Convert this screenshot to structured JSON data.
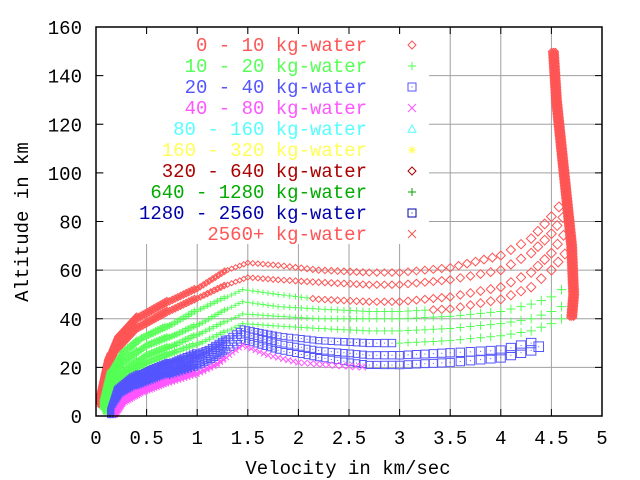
{
  "chart_data": {
    "type": "scatter",
    "title": "",
    "xlabel": "Velocity in km/sec",
    "ylabel": "Altitude in km",
    "xlim": [
      0,
      5
    ],
    "ylim": [
      0,
      160
    ],
    "xticks": [
      "0",
      "0.5",
      "1",
      "1.5",
      "2",
      "2.5",
      "3",
      "3.5",
      "4",
      "4.5",
      "5"
    ],
    "xtick_values": [
      0,
      0.5,
      1,
      1.5,
      2,
      2.5,
      3,
      3.5,
      4,
      4.5,
      5
    ],
    "yticks": [
      "0",
      "20",
      "40",
      "60",
      "80",
      "100",
      "120",
      "140",
      "160"
    ],
    "ytick_values": [
      0,
      20,
      40,
      60,
      80,
      100,
      120,
      140,
      160
    ],
    "grid": true,
    "legend_position": "top-center",
    "legend": [
      {
        "label": "0 - 10 kg-water",
        "color": "#ff5555",
        "marker": "diamond"
      },
      {
        "label": "10 - 20 kg-water",
        "color": "#55ff55",
        "marker": "plus"
      },
      {
        "label": "20 - 40 kg-water",
        "color": "#5555ff",
        "marker": "square"
      },
      {
        "label": "40 - 80 kg-water",
        "color": "#ff55ff",
        "marker": "cross"
      },
      {
        "label": "80 - 160 kg-water",
        "color": "#55ffff",
        "marker": "triangle"
      },
      {
        "label": "160 - 320 kg-water",
        "color": "#ffff55",
        "marker": "star"
      },
      {
        "label": "320 - 640 kg-water",
        "color": "#aa0000",
        "marker": "diamond"
      },
      {
        "label": "640 - 1280 kg-water",
        "color": "#00aa00",
        "marker": "plus"
      },
      {
        "label": "1280 - 2560 kg-water",
        "color": "#0000aa",
        "marker": "square"
      },
      {
        "label": "2560+ kg-water",
        "color": "#ff5555",
        "marker": "cross"
      }
    ],
    "series": [
      {
        "legend_index": 0,
        "points": [
          [
            0.02,
            5
          ],
          [
            0.1,
            20
          ],
          [
            0.2,
            30
          ],
          [
            0.4,
            39
          ],
          [
            0.7,
            46
          ],
          [
            1.0,
            52
          ],
          [
            1.3,
            60
          ],
          [
            1.5,
            63
          ],
          [
            1.8,
            62
          ],
          [
            2.2,
            60
          ],
          [
            2.7,
            59
          ],
          [
            3.0,
            59
          ],
          [
            3.5,
            61
          ],
          [
            4.0,
            66
          ],
          [
            4.3,
            73
          ],
          [
            4.5,
            82
          ],
          [
            4.65,
            90
          ]
        ]
      },
      {
        "legend_index": 0,
        "points": [
          [
            0.03,
            4
          ],
          [
            0.1,
            17
          ],
          [
            0.2,
            26
          ],
          [
            0.4,
            35
          ],
          [
            0.7,
            42
          ],
          [
            1.0,
            48
          ],
          [
            1.3,
            54
          ],
          [
            1.5,
            57
          ],
          [
            1.8,
            56
          ],
          [
            2.2,
            55
          ],
          [
            2.7,
            54
          ],
          [
            3.0,
            54
          ],
          [
            3.5,
            56
          ],
          [
            4.0,
            60
          ],
          [
            4.3,
            67
          ],
          [
            4.5,
            75
          ],
          [
            4.67,
            85
          ]
        ]
      },
      {
        "legend_index": 1,
        "switch_at": 2.1,
        "switch_index": 0,
        "points": [
          [
            0.05,
            3
          ],
          [
            0.12,
            15
          ],
          [
            0.25,
            24
          ],
          [
            0.45,
            31
          ],
          [
            0.75,
            37
          ],
          [
            1.0,
            43
          ],
          [
            1.3,
            49
          ],
          [
            1.45,
            52
          ],
          [
            1.8,
            50
          ],
          [
            2.2,
            48
          ],
          [
            2.7,
            47
          ],
          [
            3.0,
            47
          ],
          [
            3.5,
            49
          ],
          [
            4.0,
            53
          ],
          [
            4.3,
            59
          ],
          [
            4.5,
            67
          ],
          [
            4.68,
            78
          ]
        ]
      },
      {
        "legend_index": 1,
        "switch_at": 3.3,
        "switch_index": 0,
        "points": [
          [
            0.07,
            2
          ],
          [
            0.14,
            13
          ],
          [
            0.27,
            21
          ],
          [
            0.5,
            28
          ],
          [
            0.8,
            33
          ],
          [
            1.05,
            38
          ],
          [
            1.3,
            44
          ],
          [
            1.45,
            47
          ],
          [
            1.8,
            45
          ],
          [
            2.2,
            44
          ],
          [
            2.7,
            43
          ],
          [
            3.0,
            43
          ],
          [
            3.5,
            44
          ],
          [
            4.0,
            48
          ],
          [
            4.3,
            53
          ],
          [
            4.5,
            60
          ],
          [
            4.7,
            70
          ]
        ]
      },
      {
        "legend_index": 1,
        "points": [
          [
            0.08,
            1
          ],
          [
            0.15,
            11
          ],
          [
            0.3,
            18
          ],
          [
            0.5,
            24
          ],
          [
            0.8,
            29
          ],
          [
            1.05,
            34
          ],
          [
            1.3,
            39
          ],
          [
            1.45,
            42
          ],
          [
            1.8,
            41
          ],
          [
            2.2,
            40
          ],
          [
            2.7,
            40
          ],
          [
            3.0,
            40
          ],
          [
            3.5,
            41
          ],
          [
            4.0,
            43
          ],
          [
            4.3,
            46
          ],
          [
            4.5,
            49
          ],
          [
            4.7,
            55
          ]
        ]
      },
      {
        "legend_index": 1,
        "points": [
          [
            0.1,
            1
          ],
          [
            0.17,
            10
          ],
          [
            0.3,
            16
          ],
          [
            0.5,
            21
          ],
          [
            0.8,
            26
          ],
          [
            1.05,
            30
          ],
          [
            1.3,
            35
          ],
          [
            1.45,
            38
          ],
          [
            1.8,
            37
          ],
          [
            2.2,
            36
          ],
          [
            2.7,
            35
          ],
          [
            3.0,
            35
          ],
          [
            3.5,
            36
          ],
          [
            4.0,
            38
          ],
          [
            4.3,
            40
          ],
          [
            4.5,
            43
          ],
          [
            4.7,
            47
          ]
        ]
      },
      {
        "legend_index": 2,
        "switch_at": 3.0,
        "switch_index": 1,
        "points": [
          [
            0.13,
            0
          ],
          [
            0.2,
            9
          ],
          [
            0.35,
            14
          ],
          [
            0.55,
            18
          ],
          [
            0.85,
            23
          ],
          [
            1.1,
            27
          ],
          [
            1.3,
            32
          ],
          [
            1.45,
            36
          ],
          [
            1.8,
            33
          ],
          [
            2.2,
            31
          ],
          [
            2.7,
            30
          ],
          [
            3.0,
            30
          ],
          [
            3.5,
            31
          ],
          [
            4.0,
            33
          ],
          [
            4.3,
            35
          ],
          [
            4.5,
            38
          ],
          [
            4.7,
            42
          ]
        ]
      },
      {
        "legend_index": 2,
        "points": [
          [
            0.15,
            0
          ],
          [
            0.22,
            8
          ],
          [
            0.37,
            12
          ],
          [
            0.6,
            16
          ],
          [
            0.9,
            21
          ],
          [
            1.1,
            25
          ],
          [
            1.3,
            30
          ],
          [
            1.45,
            34
          ],
          [
            1.8,
            30
          ],
          [
            2.2,
            27
          ],
          [
            2.7,
            25
          ],
          [
            3.0,
            25
          ],
          [
            3.5,
            26
          ],
          [
            4.0,
            27
          ],
          [
            4.3,
            30
          ],
          [
            4.45,
            32
          ]
        ]
      },
      {
        "legend_index": 2,
        "points": [
          [
            0.18,
            0
          ],
          [
            0.25,
            7
          ],
          [
            0.4,
            11
          ],
          [
            0.65,
            15
          ],
          [
            0.95,
            19
          ],
          [
            1.15,
            23
          ],
          [
            1.3,
            27
          ],
          [
            1.45,
            31
          ],
          [
            1.8,
            27
          ],
          [
            2.2,
            24
          ],
          [
            2.7,
            21
          ],
          [
            3.0,
            21
          ],
          [
            3.5,
            22
          ],
          [
            4.0,
            24
          ],
          [
            4.3,
            27
          ],
          [
            4.45,
            30
          ]
        ]
      },
      {
        "legend_index": 3,
        "points": [
          [
            0.2,
            0
          ],
          [
            0.28,
            5
          ],
          [
            0.45,
            9
          ],
          [
            0.7,
            13
          ],
          [
            1.0,
            17
          ],
          [
            1.2,
            21
          ],
          [
            1.35,
            26
          ],
          [
            1.45,
            29
          ],
          [
            1.7,
            25
          ],
          [
            2.0,
            22
          ],
          [
            2.3,
            21
          ],
          [
            2.7,
            20
          ]
        ]
      },
      {
        "legend_index": 0,
        "dense": true,
        "points": [
          [
            4.52,
            150
          ],
          [
            4.55,
            130
          ],
          [
            4.6,
            110
          ],
          [
            4.65,
            90
          ],
          [
            4.7,
            70
          ],
          [
            4.72,
            50
          ],
          [
            4.7,
            40
          ]
        ]
      }
    ]
  }
}
